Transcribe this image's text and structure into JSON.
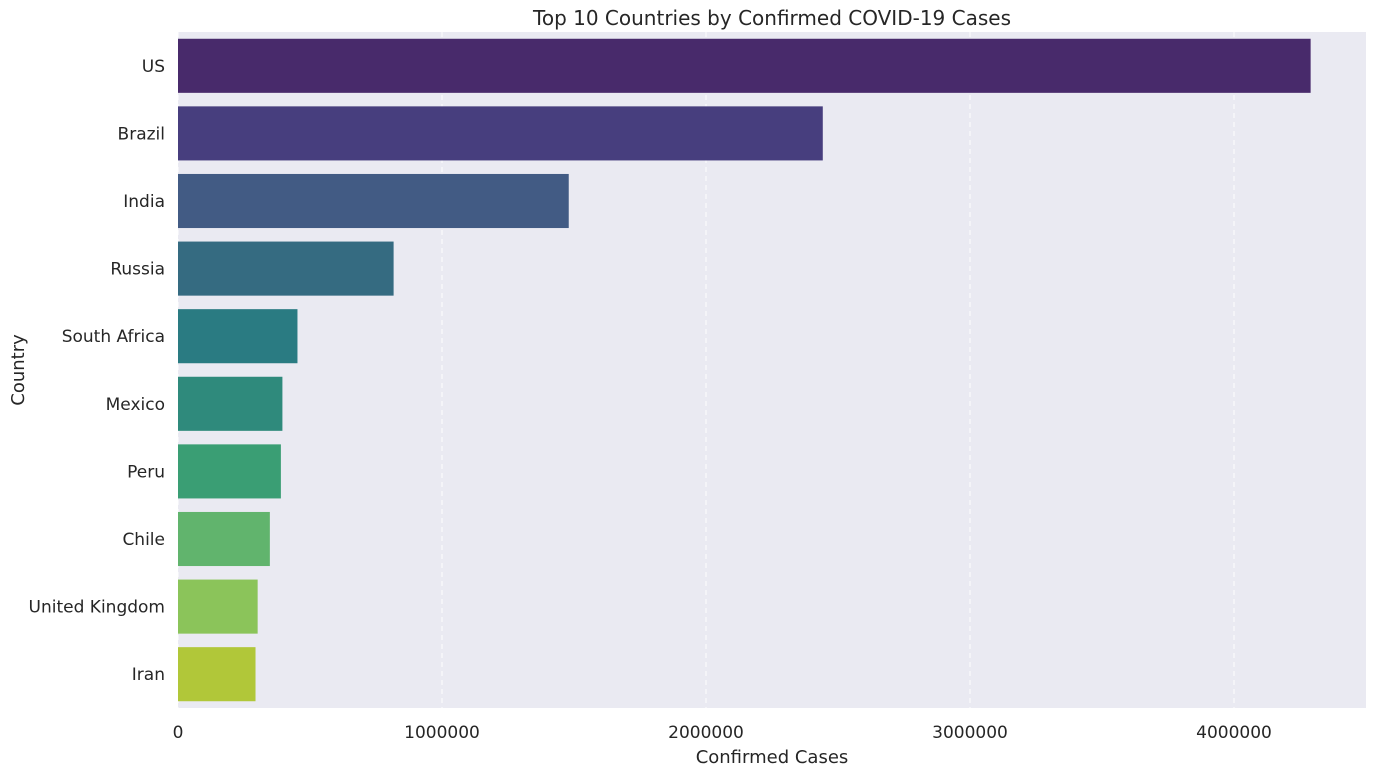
{
  "chart_data": {
    "type": "bar",
    "orientation": "horizontal",
    "title": "Top 10 Countries by Confirmed COVID-19 Cases",
    "xlabel": "Confirmed Cases",
    "ylabel": "Country",
    "categories": [
      "US",
      "Brazil",
      "India",
      "Russia",
      "South Africa",
      "Mexico",
      "Peru",
      "Chile",
      "United Kingdom",
      "Iran"
    ],
    "values": [
      4290259,
      2442375,
      1480073,
      816680,
      452529,
      395489,
      389717,
      347923,
      301708,
      293606
    ],
    "colors": [
      "#482a6b",
      "#473e7e",
      "#425b84",
      "#356b81",
      "#2a7b82",
      "#2f8a7c",
      "#3a9e74",
      "#61b46d",
      "#8bc45a",
      "#b1c739"
    ],
    "xlim": [
      0,
      4500000
    ],
    "xticks": [
      0,
      1000000,
      2000000,
      3000000,
      4000000
    ],
    "xtick_labels": [
      "0",
      "1000000",
      "2000000",
      "3000000",
      "4000000"
    ],
    "grid": "x-dashed",
    "background": "#eaeaf2"
  }
}
